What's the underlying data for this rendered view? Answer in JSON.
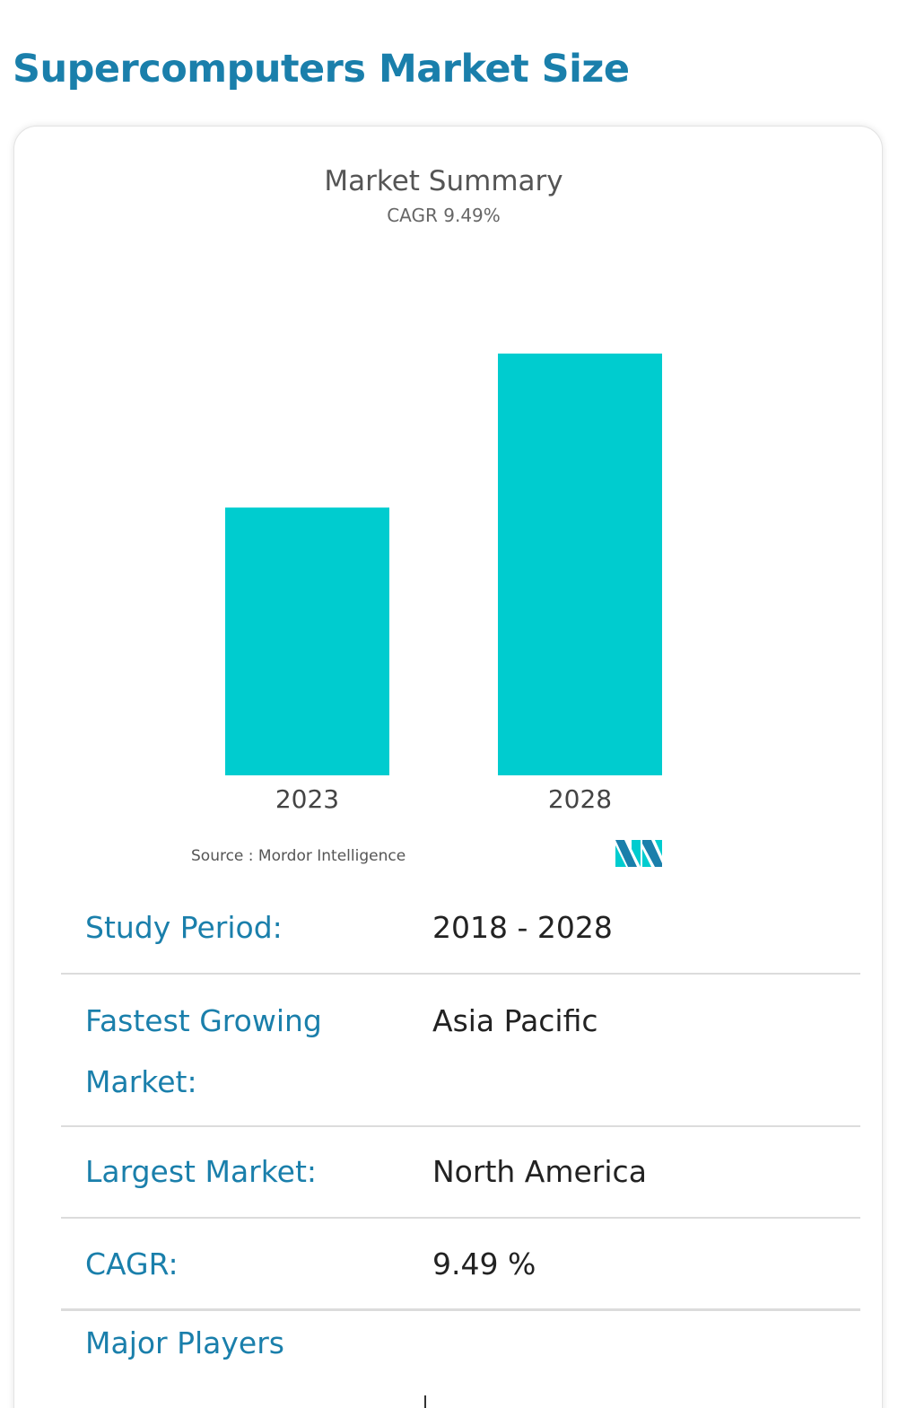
{
  "page": {
    "title": "Supercomputers Market Size"
  },
  "chart_data": {
    "type": "bar",
    "title": "Market Summary",
    "subtitle": "CAGR 9.49%",
    "categories": [
      "2023",
      "2028"
    ],
    "values": [
      63.5,
      100
    ],
    "ylim": [
      0,
      100
    ],
    "bar_color": "#00cccf",
    "grid": false,
    "source": "Source : Mordor Intelligence"
  },
  "logo": {
    "name": "mordor-intelligence-logo",
    "colors": [
      "#1a7fab",
      "#00cccf"
    ]
  },
  "summary": {
    "rows": [
      {
        "label": "Study Period:",
        "value": "2018 - 2028"
      },
      {
        "label": "Fastest Growing Market:",
        "value": "Asia Pacific"
      },
      {
        "label": "Largest Market:",
        "value": "North America"
      },
      {
        "label": "CAGR:",
        "value": "9.49 %"
      },
      {
        "label": "Major Players",
        "value": ""
      }
    ]
  },
  "colors": {
    "accent": "#1a7fab",
    "bar": "#00cccf",
    "text": "#222222"
  }
}
